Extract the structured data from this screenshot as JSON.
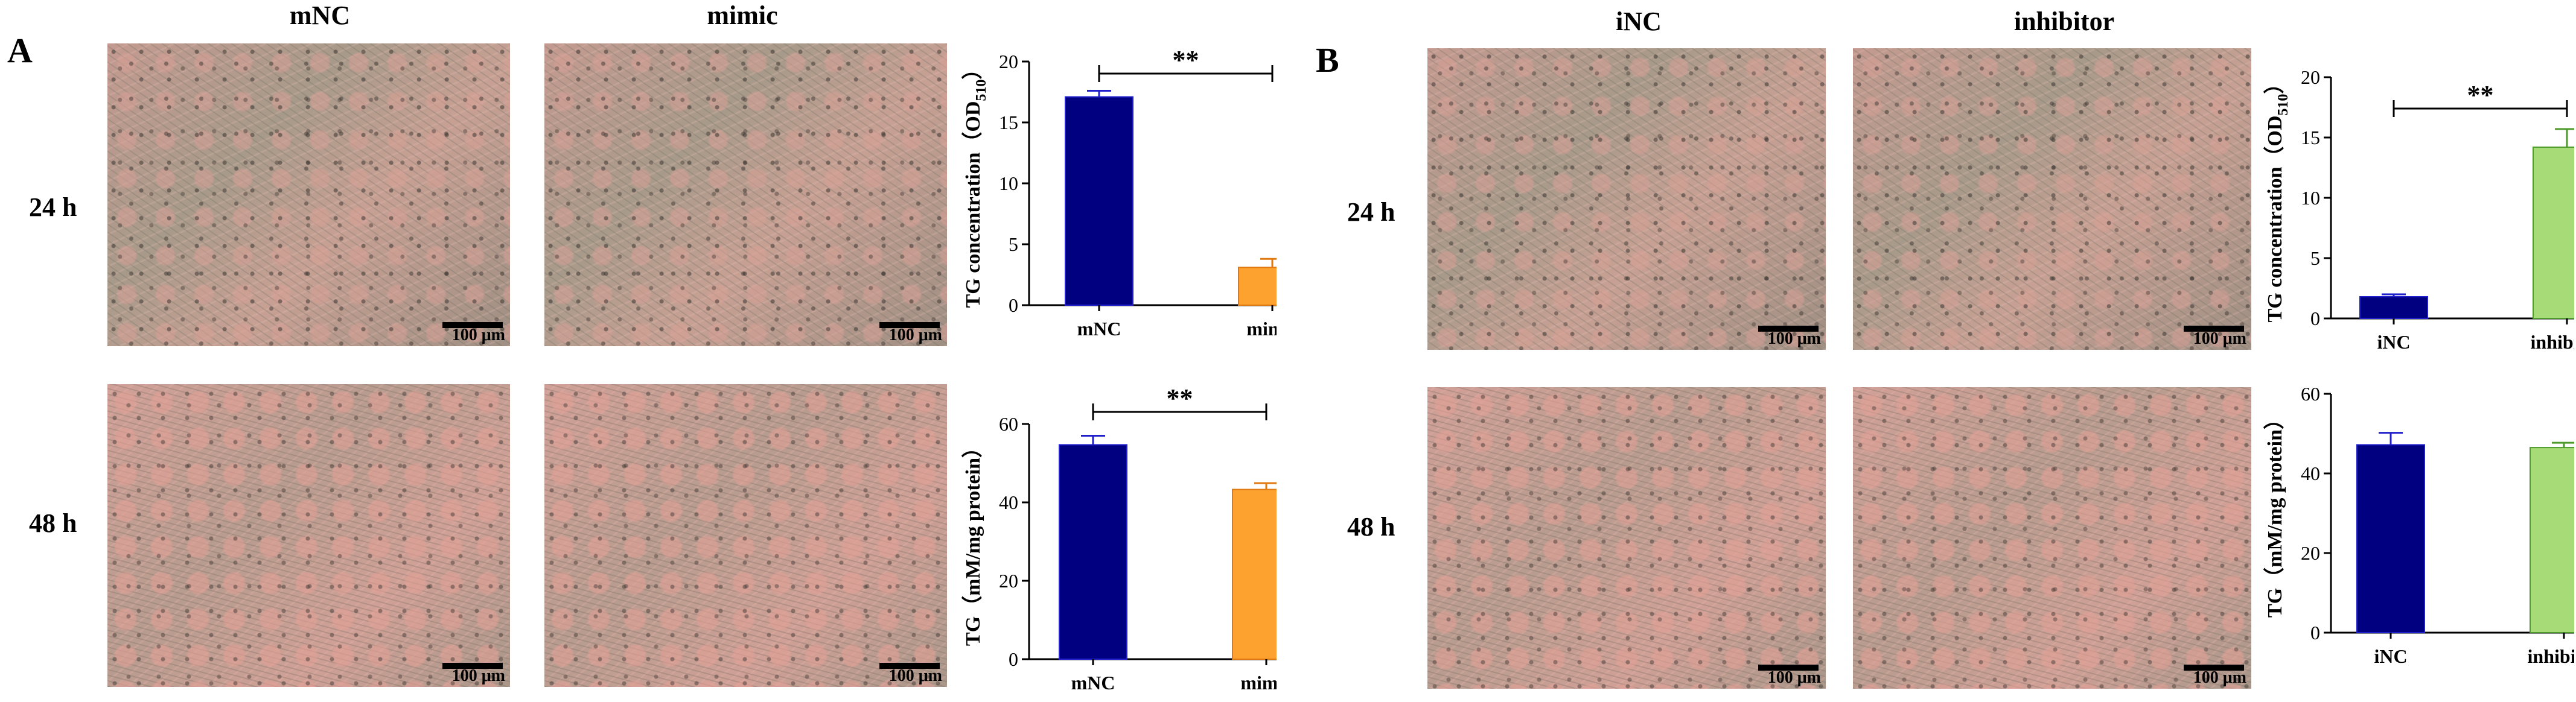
{
  "panels": {
    "a": {
      "letter": "A",
      "col_labels": [
        "mNC",
        "mimic"
      ],
      "row_labels": [
        "24 h",
        "48 h"
      ]
    },
    "b": {
      "letter": "B",
      "col_labels": [
        "iNC",
        "inhibitor"
      ],
      "row_labels": [
        "24 h",
        "48 h"
      ]
    }
  },
  "scale_label": "100 μm",
  "colors": {
    "navy": "#000080",
    "orange": "#fda22f",
    "green": "#a6db78",
    "error_navy": "#1f1fcc",
    "error_orange": "#e07a10",
    "error_green": "#4d9a2a"
  },
  "chart_data": [
    {
      "id": "a-top",
      "type": "bar",
      "categories": [
        "mNC",
        "mimic"
      ],
      "values": [
        17.1,
        3.1
      ],
      "errors": [
        0.5,
        0.7
      ],
      "ylim": [
        0,
        20
      ],
      "yticks": [
        "0",
        "5",
        "10",
        "15",
        "20"
      ],
      "ylabel": "TG concentration（OD",
      "ylabel_sub": "510",
      "ylabel_close": "）",
      "significance": "**"
    },
    {
      "id": "a-bottom",
      "type": "bar",
      "categories": [
        "mNC",
        "mimic"
      ],
      "values": [
        54.7,
        43.3
      ],
      "errors": [
        2.3,
        1.6
      ],
      "ylim": [
        0,
        60
      ],
      "yticks": [
        "0",
        "20",
        "40",
        "60"
      ],
      "ylabel": "TG（mM/mg protein）",
      "significance": "**"
    },
    {
      "id": "b-top",
      "type": "bar",
      "categories": [
        "iNC",
        "inhibitor"
      ],
      "values": [
        1.8,
        14.2
      ],
      "errors": [
        0.2,
        1.5
      ],
      "ylim": [
        0,
        20
      ],
      "yticks": [
        "0",
        "5",
        "10",
        "15",
        "20"
      ],
      "ylabel": "TG concentration（OD",
      "ylabel_sub": "510",
      "ylabel_close": "）",
      "significance": "**"
    },
    {
      "id": "b-bottom",
      "type": "bar",
      "categories": [
        "iNC",
        "inhibitor"
      ],
      "values": [
        47.2,
        46.5
      ],
      "errors": [
        3.0,
        1.2
      ],
      "ylim": [
        0,
        60
      ],
      "yticks": [
        "0",
        "20",
        "40",
        "60"
      ],
      "ylabel": "TG（mM/mg protein）",
      "significance": ""
    }
  ]
}
